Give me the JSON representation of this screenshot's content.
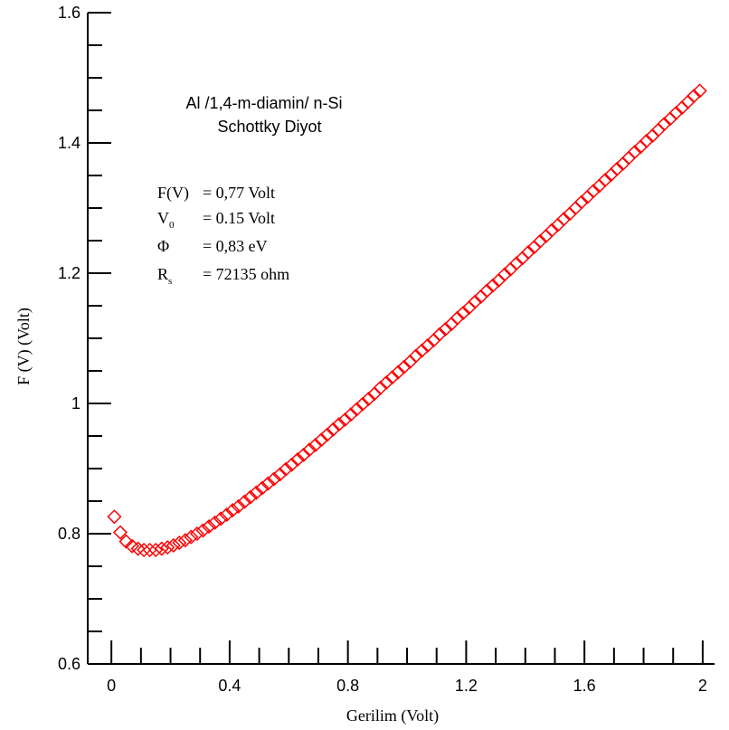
{
  "chart_data": {
    "type": "scatter",
    "xlabel": "Gerilim (Volt)",
    "ylabel": "F (V) (Volt)",
    "xlim": [
      -0.08,
      2.04
    ],
    "ylim": [
      0.6,
      1.6
    ],
    "x_ticks": [
      "0",
      "0.4",
      "0.8",
      "1.2",
      "1.6",
      "2"
    ],
    "x_tick_values": [
      0,
      0.4,
      0.8,
      1.2,
      1.6,
      2
    ],
    "y_ticks": [
      "0.6",
      "0.8",
      "1",
      "1.2",
      "1.4",
      "1.6"
    ],
    "y_tick_values": [
      0.6,
      0.8,
      1.0,
      1.2,
      1.4,
      1.6
    ],
    "grid": false,
    "marker": "diamond",
    "marker_color": "#ff0000",
    "series": [
      {
        "x": [
          0.01,
          0.03,
          0.05,
          0.07,
          0.09,
          0.11,
          0.13,
          0.15,
          0.17,
          0.19,
          0.21,
          0.23,
          0.25,
          0.27,
          0.29,
          0.31,
          0.33,
          0.35,
          0.37,
          0.39,
          0.41,
          0.43,
          0.45,
          0.47,
          0.49,
          0.51,
          0.53,
          0.55,
          0.57,
          0.59,
          0.61,
          0.63,
          0.65,
          0.67,
          0.69,
          0.71,
          0.73,
          0.75,
          0.77,
          0.79,
          0.81,
          0.83,
          0.85,
          0.87,
          0.89,
          0.91,
          0.93,
          0.95,
          0.97,
          0.99,
          1.01,
          1.03,
          1.05,
          1.07,
          1.09,
          1.11,
          1.13,
          1.15,
          1.17,
          1.19,
          1.21,
          1.23,
          1.25,
          1.27,
          1.29,
          1.31,
          1.33,
          1.35,
          1.37,
          1.39,
          1.41,
          1.43,
          1.45,
          1.47,
          1.49,
          1.51,
          1.53,
          1.55,
          1.57,
          1.59,
          1.61,
          1.63,
          1.65,
          1.67,
          1.69,
          1.71,
          1.73,
          1.75,
          1.77,
          1.79,
          1.81,
          1.83,
          1.85,
          1.87,
          1.89,
          1.91,
          1.93,
          1.95,
          1.97,
          1.99
        ],
        "y": [
          0.826,
          0.802,
          0.788,
          0.781,
          0.777,
          0.775,
          0.775,
          0.775,
          0.777,
          0.779,
          0.782,
          0.786,
          0.79,
          0.795,
          0.8,
          0.805,
          0.811,
          0.817,
          0.823,
          0.829,
          0.836,
          0.842,
          0.849,
          0.856,
          0.863,
          0.87,
          0.877,
          0.884,
          0.891,
          0.899,
          0.906,
          0.914,
          0.921,
          0.929,
          0.936,
          0.944,
          0.952,
          0.96,
          0.968,
          0.975,
          0.983,
          0.991,
          0.999,
          1.007,
          1.015,
          1.024,
          1.032,
          1.04,
          1.048,
          1.056,
          1.064,
          1.073,
          1.081,
          1.089,
          1.097,
          1.106,
          1.114,
          1.122,
          1.131,
          1.139,
          1.147,
          1.156,
          1.164,
          1.173,
          1.181,
          1.189,
          1.198,
          1.206,
          1.215,
          1.223,
          1.232,
          1.24,
          1.249,
          1.257,
          1.266,
          1.274,
          1.283,
          1.291,
          1.3,
          1.309,
          1.317,
          1.326,
          1.334,
          1.343,
          1.351,
          1.36,
          1.368,
          1.377,
          1.386,
          1.394,
          1.403,
          1.411,
          1.42,
          1.429,
          1.437,
          1.446,
          1.454,
          1.463,
          1.472,
          1.48
        ]
      }
    ],
    "annotations": {
      "title_line1": "Al /1,4-m-diamin/ n-Si",
      "title_line2": "Schottky Diyot",
      "params": [
        {
          "lhs": "F(V)",
          "sub": "",
          "rhs": "= 0,77 Volt"
        },
        {
          "lhs": "V",
          "sub": "0",
          "rhs": "= 0.15 Volt"
        },
        {
          "lhs": "Φ",
          "sub": "",
          "rhs": "= 0,83 eV"
        },
        {
          "lhs": "R",
          "sub": "s",
          "rhs": "= 72135 ohm"
        }
      ]
    }
  }
}
